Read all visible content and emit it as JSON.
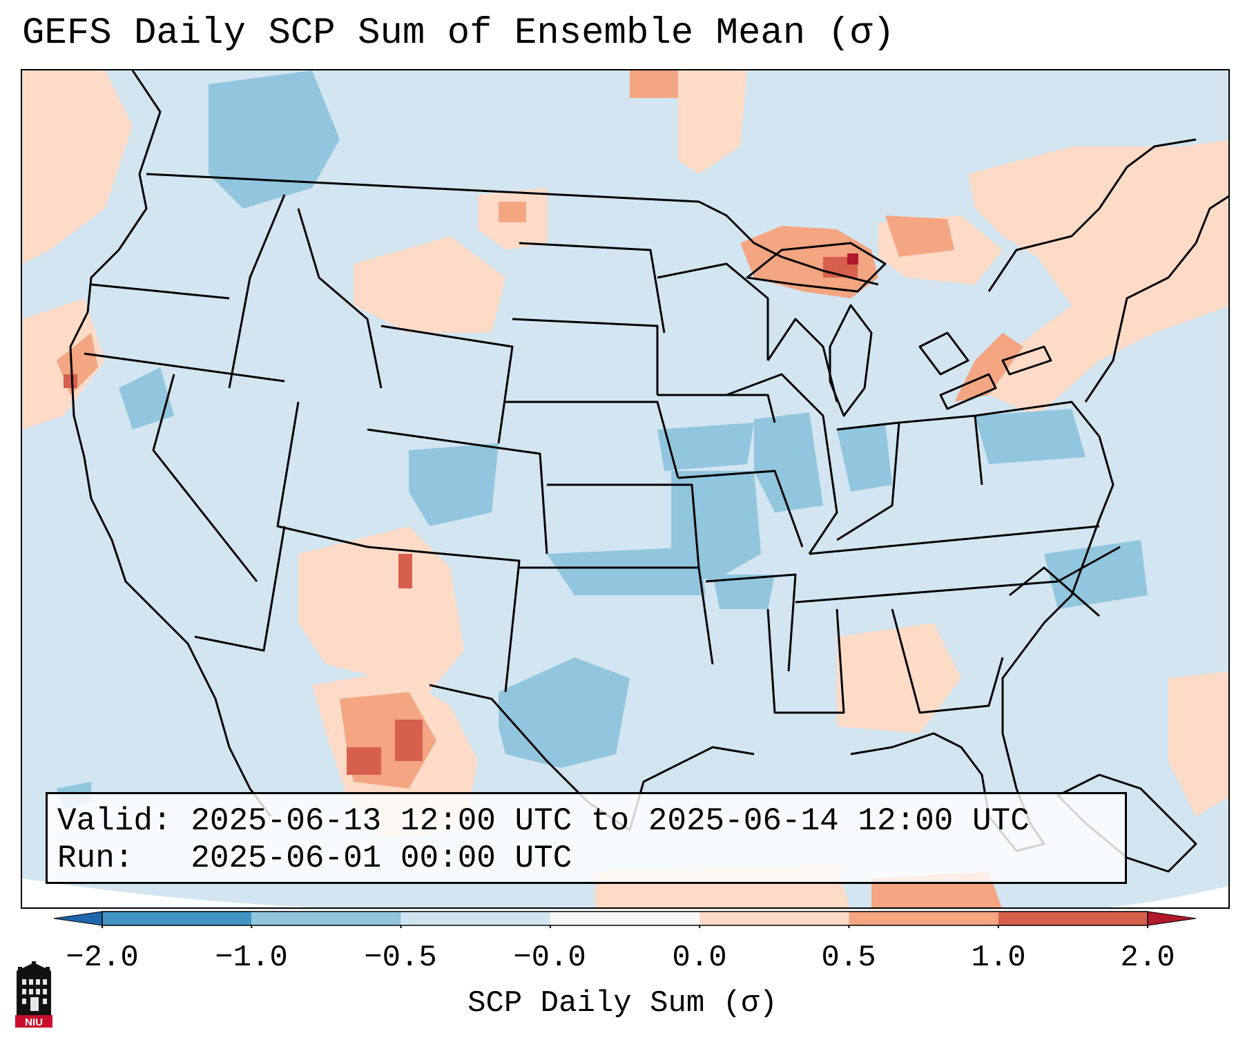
{
  "title": "GEFS Daily SCP Sum of Ensemble Mean (σ)",
  "info": {
    "valid": "Valid: 2025-06-13 12:00 UTC to 2025-06-14 12:00 UTC",
    "run": "Run:   2025-06-01 00:00 UTC"
  },
  "colorbar": {
    "label": "SCP Daily Sum (σ)",
    "ticks": [
      "−2.0",
      "−1.0",
      "−0.5",
      "−0.0",
      "0.0",
      "0.5",
      "1.0",
      "2.0"
    ],
    "colors": [
      "#4393c3",
      "#92c5de",
      "#d1e5f0",
      "#f7f7f7",
      "#fddbc7",
      "#f4a582",
      "#d6604d"
    ],
    "under_color": "#2166ac",
    "over_color": "#b2182b"
  },
  "map": {
    "background_color": "#d2e5f0",
    "ocean_note": ""
  },
  "logo": {
    "text": "NIU"
  }
}
